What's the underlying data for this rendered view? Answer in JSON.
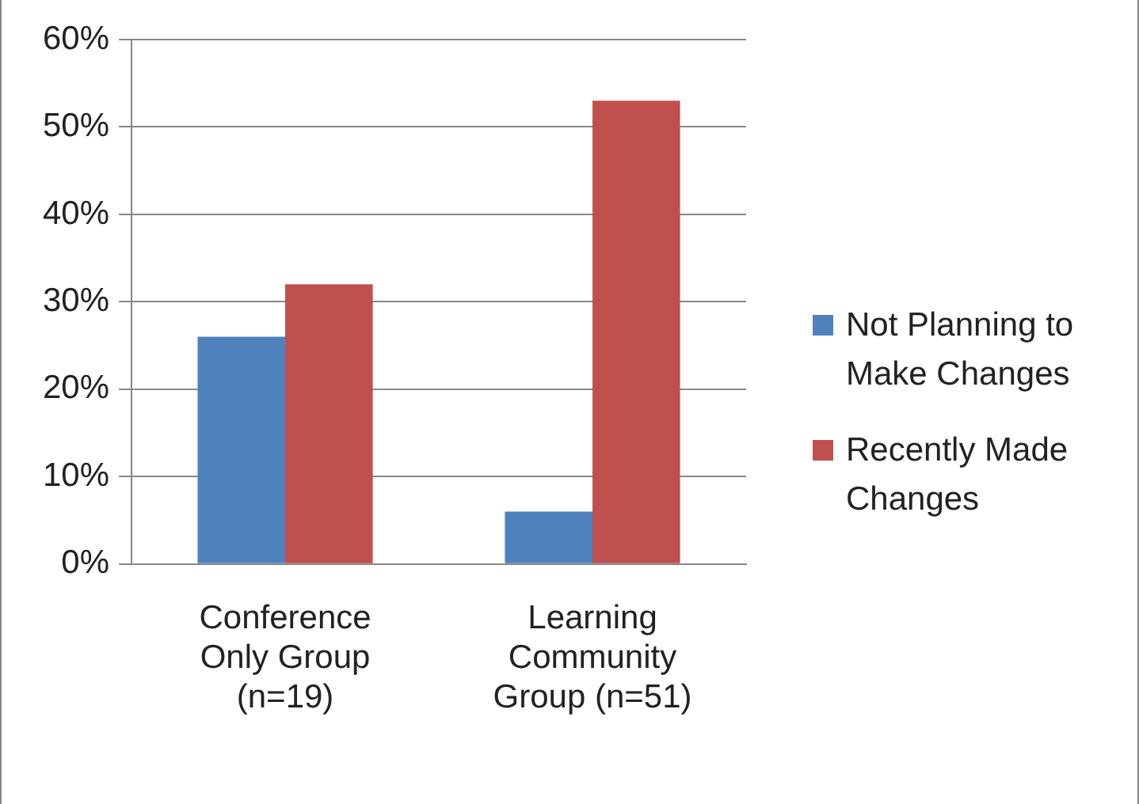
{
  "chart_data": {
    "type": "bar",
    "categories": [
      "Conference Only Group (n=19)",
      "Learning Community Group (n=51)"
    ],
    "series": [
      {
        "name": "Not Planning to Make Changes",
        "color": "#4f81bd",
        "values": [
          26,
          6
        ]
      },
      {
        "name": "Recently Made Changes",
        "color": "#c0504d",
        "values": [
          32,
          53
        ]
      }
    ],
    "ylim": [
      0,
      60
    ],
    "yticks": [
      {
        "value": 0,
        "label": "0%"
      },
      {
        "value": 10,
        "label": "10%"
      },
      {
        "value": 20,
        "label": "20%"
      },
      {
        "value": 30,
        "label": "30%"
      },
      {
        "value": 40,
        "label": "40%"
      },
      {
        "value": 50,
        "label": "50%"
      },
      {
        "value": 60,
        "label": "60%"
      }
    ],
    "grid": "y",
    "legend": "right"
  }
}
